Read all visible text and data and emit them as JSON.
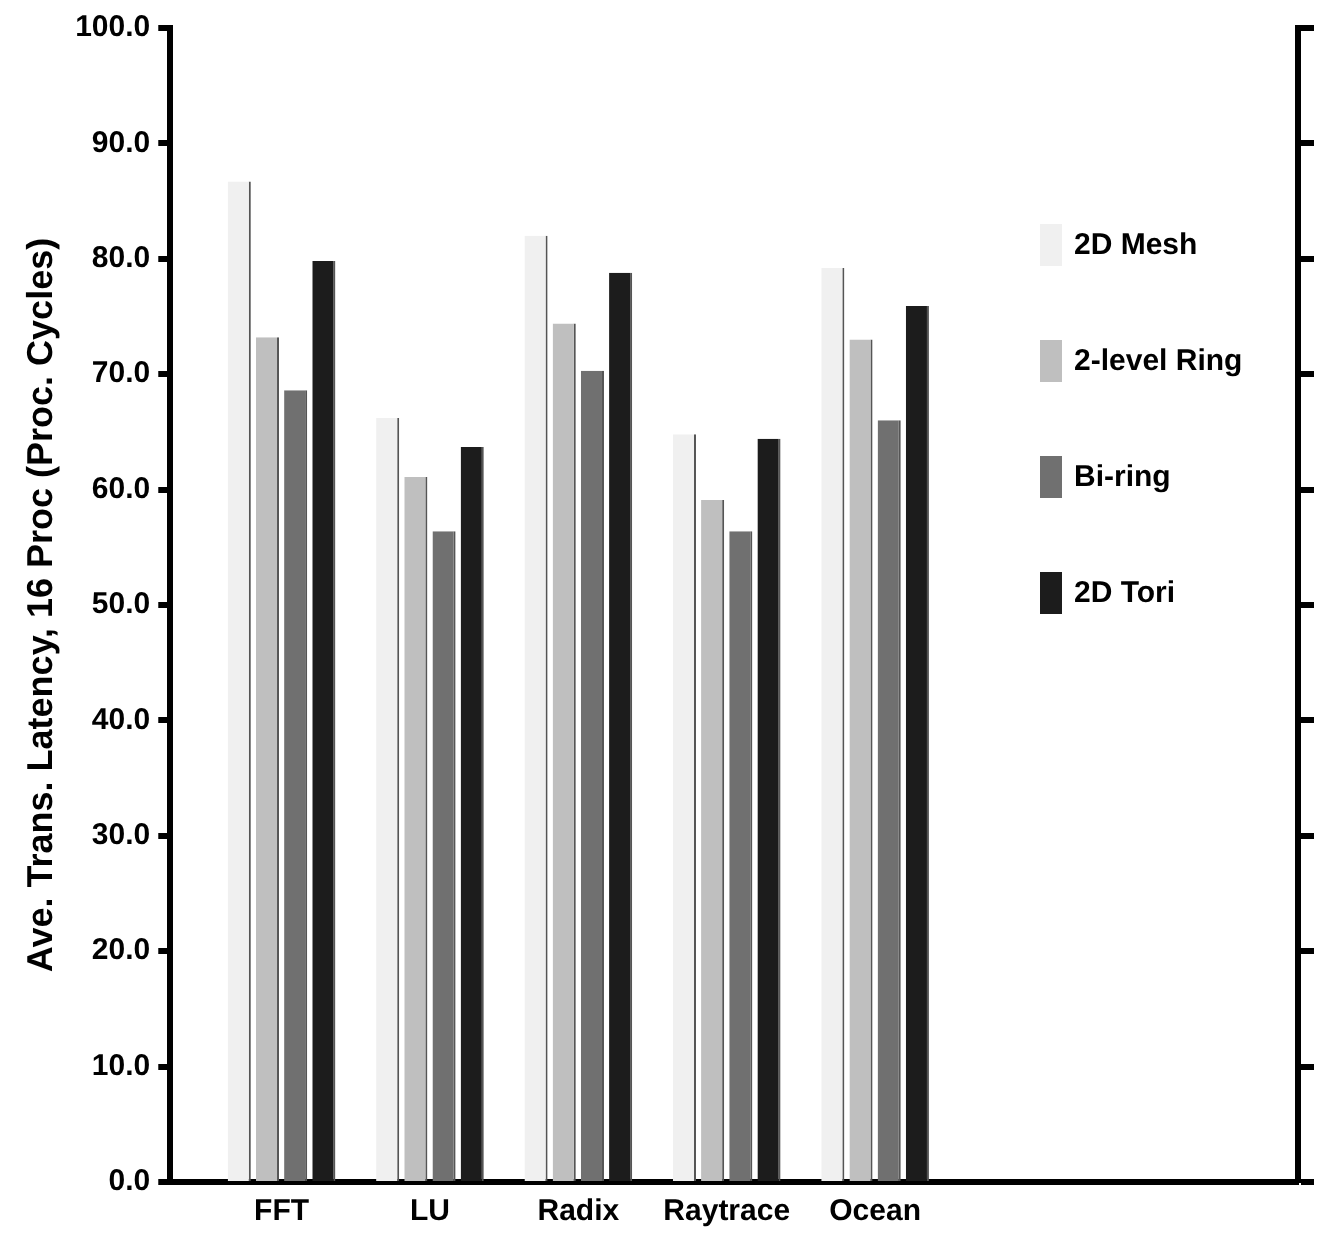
{
  "chart_data": {
    "type": "bar",
    "ylabel": "Ave. Trans. Latency, 16 Proc (Proc. Cycles)",
    "categories": [
      "FFT",
      "LU",
      "Radix",
      "Raytrace",
      "Ocean"
    ],
    "series": [
      {
        "name": "2D Mesh",
        "color": "#f0f0f0",
        "values": [
          86.7,
          66.2,
          82.0,
          64.8,
          79.2
        ]
      },
      {
        "name": "2-level Ring",
        "color": "#bfbfbf",
        "values": [
          73.2,
          61.1,
          74.4,
          59.1,
          73.0
        ]
      },
      {
        "name": "Bi-ring",
        "color": "#707070",
        "values": [
          68.6,
          56.4,
          70.3,
          56.4,
          66.0
        ]
      },
      {
        "name": "2D Tori",
        "color": "#1c1c1c",
        "values": [
          79.8,
          63.7,
          78.8,
          64.4,
          75.9
        ]
      }
    ],
    "ylim": [
      0,
      100
    ],
    "yticks": [
      {
        "value": 0,
        "label": "0.0"
      },
      {
        "value": 10,
        "label": "10.0"
      },
      {
        "value": 20,
        "label": "20.0"
      },
      {
        "value": 30,
        "label": "30.0"
      },
      {
        "value": 40,
        "label": "40.0"
      },
      {
        "value": 50,
        "label": "50.0"
      },
      {
        "value": 60,
        "label": "60.0"
      },
      {
        "value": 70,
        "label": "70.0"
      },
      {
        "value": 80,
        "label": "80.0"
      },
      {
        "value": 90,
        "label": "90.0"
      },
      {
        "value": 100,
        "label": "100.0"
      }
    ],
    "grid": false,
    "legend": "right"
  }
}
